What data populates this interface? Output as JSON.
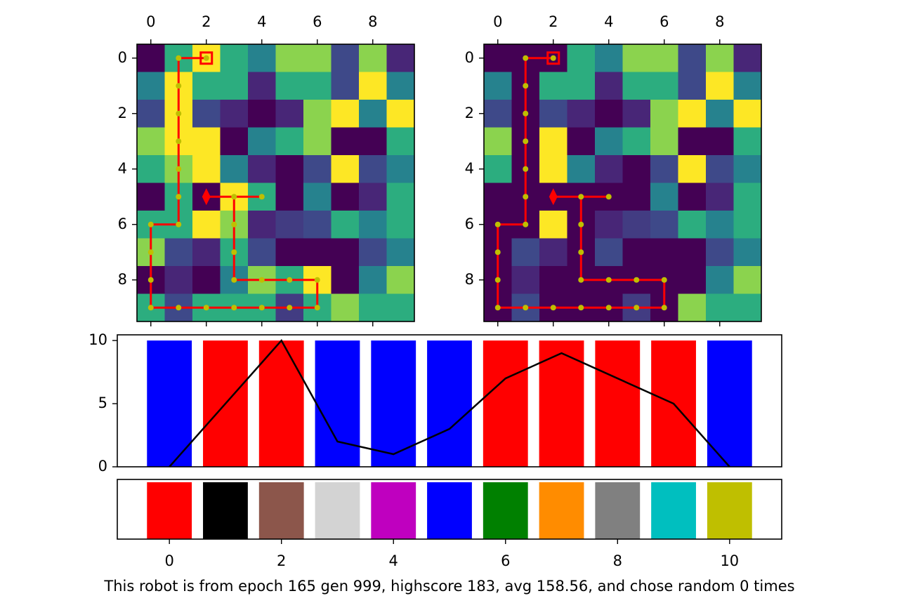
{
  "chart_data": [
    {
      "type": "heatmap",
      "colormap": "viridis",
      "zlim": [
        0,
        1
      ],
      "z": [
        [
          0,
          0.7,
          1,
          0.7,
          0.5,
          0.9,
          0.9,
          0.25,
          0.9,
          0.12
        ],
        [
          0.5,
          1,
          0.7,
          0.7,
          0.12,
          0.7,
          0.7,
          0.25,
          1,
          0.5
        ],
        [
          0.25,
          1,
          0.25,
          0.12,
          0,
          0.12,
          0.9,
          1,
          0.5,
          1
        ],
        [
          0.9,
          1,
          1,
          0,
          0.5,
          0.7,
          0.9,
          0,
          0,
          0.7
        ],
        [
          0.7,
          0.9,
          1,
          0.5,
          0.12,
          0,
          0.25,
          1,
          0.25,
          0.5
        ],
        [
          0,
          0.7,
          0,
          1,
          0.7,
          0,
          0.5,
          0,
          0.12,
          0.7
        ],
        [
          0.7,
          0.7,
          1,
          0.9,
          0.12,
          0.2,
          0.25,
          0.7,
          0.5,
          0.7
        ],
        [
          0.9,
          0.25,
          0.12,
          0.7,
          0.25,
          0,
          0,
          0,
          0.25,
          0.5
        ],
        [
          0,
          0.12,
          0,
          0.5,
          0.9,
          0.7,
          1,
          0,
          0.5,
          0.9
        ],
        [
          0.7,
          0.25,
          0.7,
          0.7,
          0.7,
          0.2,
          0.7,
          0.9,
          0.7,
          0.7
        ]
      ],
      "xlim": [
        -0.5,
        9.5
      ],
      "ylim": [
        9.5,
        -0.5
      ],
      "xticks": [
        0,
        2,
        4,
        6,
        8
      ],
      "yticks": [
        0,
        2,
        4,
        6,
        8
      ],
      "path": {
        "x": [
          2,
          1,
          1,
          1,
          1,
          1,
          1,
          1,
          0,
          0,
          0,
          0,
          1,
          2,
          3,
          4,
          5,
          6,
          6,
          5,
          4,
          3,
          3,
          3,
          3,
          4,
          2
        ],
        "y": [
          0,
          0,
          1,
          2,
          3,
          4,
          5,
          6,
          6,
          7,
          8,
          9,
          9,
          9,
          9,
          9,
          9,
          9,
          8,
          8,
          8,
          8,
          7,
          6,
          5,
          5,
          5
        ],
        "color": "#ff0000",
        "marker_color": "#bfbf00"
      }
    },
    {
      "type": "heatmap",
      "colormap": "viridis",
      "zlim": [
        0,
        1
      ],
      "z": [
        [
          0,
          0,
          0,
          0.7,
          0.5,
          0.9,
          0.9,
          0.25,
          0.9,
          0.12
        ],
        [
          0.5,
          0,
          0.7,
          0.7,
          0.12,
          0.7,
          0.7,
          0.25,
          1,
          0.5
        ],
        [
          0.25,
          0,
          0.25,
          0.12,
          0,
          0.12,
          0.9,
          1,
          0.5,
          1
        ],
        [
          0.9,
          0,
          1,
          0,
          0.5,
          0.7,
          0.9,
          0,
          0,
          0.7
        ],
        [
          0.7,
          0,
          1,
          0.5,
          0.12,
          0,
          0.25,
          1,
          0.25,
          0.5
        ],
        [
          0,
          0,
          0,
          0,
          0,
          0,
          0.5,
          0,
          0.12,
          0.7
        ],
        [
          0,
          0,
          1,
          0,
          0.12,
          0.2,
          0.25,
          0.7,
          0.5,
          0.7
        ],
        [
          0,
          0.25,
          0.12,
          0,
          0.25,
          0,
          0,
          0,
          0.25,
          0.5
        ],
        [
          0,
          0.12,
          0,
          0,
          0,
          0,
          0,
          0,
          0.5,
          0.9
        ],
        [
          0,
          0.25,
          0,
          0,
          0,
          0.2,
          0,
          0.9,
          0.7,
          0.7
        ]
      ],
      "xlim": [
        -0.5,
        9.5
      ],
      "ylim": [
        9.5,
        -0.5
      ],
      "xticks": [
        0,
        2,
        4,
        6,
        8
      ],
      "yticks": [
        0,
        2,
        4,
        6,
        8
      ],
      "path": {
        "x": [
          2,
          1,
          1,
          1,
          1,
          1,
          1,
          1,
          0,
          0,
          0,
          0,
          1,
          2,
          3,
          4,
          5,
          6,
          6,
          5,
          4,
          3,
          3,
          3,
          3,
          4,
          2
        ],
        "y": [
          0,
          0,
          1,
          2,
          3,
          4,
          5,
          6,
          6,
          7,
          8,
          9,
          9,
          9,
          9,
          9,
          9,
          9,
          8,
          8,
          8,
          8,
          7,
          6,
          5,
          5,
          5
        ],
        "color": "#ff0000",
        "marker_color": "#bfbf00"
      }
    },
    {
      "type": "bar",
      "x": [
        0,
        1,
        2,
        3,
        4,
        5,
        6,
        7,
        8,
        9,
        10
      ],
      "values": [
        10,
        10,
        10,
        10,
        10,
        10,
        10,
        10,
        10,
        10,
        10
      ],
      "colors": [
        "#0000ff",
        "#ff0000",
        "#ff0000",
        "#0000ff",
        "#0000ff",
        "#0000ff",
        "#ff0000",
        "#ff0000",
        "#ff0000",
        "#ff0000",
        "#0000ff"
      ],
      "line": {
        "values": [
          0,
          5,
          10,
          2,
          1,
          3,
          7,
          9,
          7,
          5,
          0
        ],
        "color": "#000000"
      },
      "xlim": [
        -0.93,
        10.93
      ],
      "ylim": [
        0,
        10.45
      ],
      "yticks": [
        0,
        5,
        10
      ]
    },
    {
      "type": "strip",
      "x": [
        0,
        1,
        2,
        3,
        4,
        5,
        6,
        7,
        8,
        9,
        10
      ],
      "colors": [
        "#ff0000",
        "#000000",
        "#8c564b",
        "#d3d3d3",
        "#bf00bf",
        "#0000ff",
        "#008000",
        "#ff8c00",
        "#808080",
        "#00bfbf",
        "#bfbf00"
      ],
      "xlim": [
        -0.93,
        10.93
      ],
      "xticks": [
        0,
        2,
        4,
        6,
        8,
        10
      ]
    }
  ],
  "caption": "This robot is from epoch 165 gen 999, highscore 183, avg 158.56, and chose random 0 times"
}
